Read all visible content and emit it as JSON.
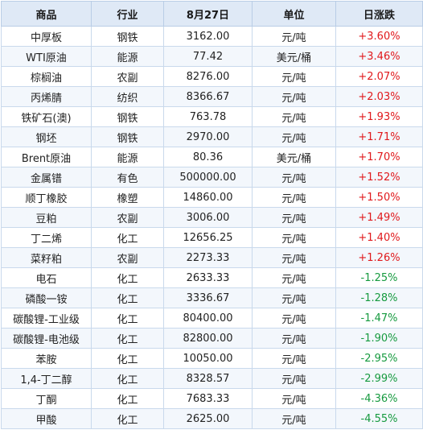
{
  "header": {
    "product": "商品",
    "industry": "行业",
    "date": "8月27日",
    "unit": "单位",
    "change": "日涨跌"
  },
  "rows": [
    {
      "name": "中厚板",
      "industry": "钢铁",
      "price": "3162.00",
      "unit": "元/吨",
      "change": "+3.60%"
    },
    {
      "name": "WTI原油",
      "industry": "能源",
      "price": "77.42",
      "unit": "美元/桶",
      "change": "+3.46%"
    },
    {
      "name": "棕榈油",
      "industry": "农副",
      "price": "8276.00",
      "unit": "元/吨",
      "change": "+2.07%"
    },
    {
      "name": "丙烯腈",
      "industry": "纺织",
      "price": "8366.67",
      "unit": "元/吨",
      "change": "+2.03%"
    },
    {
      "name": "铁矿石(澳)",
      "industry": "钢铁",
      "price": "763.78",
      "unit": "元/吨",
      "change": "+1.93%"
    },
    {
      "name": "钢坯",
      "industry": "钢铁",
      "price": "2970.00",
      "unit": "元/吨",
      "change": "+1.71%"
    },
    {
      "name": "Brent原油",
      "industry": "能源",
      "price": "80.36",
      "unit": "美元/桶",
      "change": "+1.70%"
    },
    {
      "name": "金属镨",
      "industry": "有色",
      "price": "500000.00",
      "unit": "元/吨",
      "change": "+1.52%"
    },
    {
      "name": "顺丁橡胶",
      "industry": "橡塑",
      "price": "14860.00",
      "unit": "元/吨",
      "change": "+1.50%"
    },
    {
      "name": "豆粕",
      "industry": "农副",
      "price": "3006.00",
      "unit": "元/吨",
      "change": "+1.49%"
    },
    {
      "name": "丁二烯",
      "industry": "化工",
      "price": "12656.25",
      "unit": "元/吨",
      "change": "+1.40%"
    },
    {
      "name": "菜籽粕",
      "industry": "农副",
      "price": "2273.33",
      "unit": "元/吨",
      "change": "+1.26%"
    },
    {
      "name": "电石",
      "industry": "化工",
      "price": "2633.33",
      "unit": "元/吨",
      "change": "-1.25%"
    },
    {
      "name": "磷酸一铵",
      "industry": "化工",
      "price": "3336.67",
      "unit": "元/吨",
      "change": "-1.28%"
    },
    {
      "name": "碳酸锂-工业级",
      "industry": "化工",
      "price": "80400.00",
      "unit": "元/吨",
      "change": "-1.47%"
    },
    {
      "name": "碳酸锂-电池级",
      "industry": "化工",
      "price": "82800.00",
      "unit": "元/吨",
      "change": "-1.90%"
    },
    {
      "name": "苯胺",
      "industry": "化工",
      "price": "10050.00",
      "unit": "元/吨",
      "change": "-2.95%"
    },
    {
      "name": "1,4-丁二醇",
      "industry": "化工",
      "price": "8328.57",
      "unit": "元/吨",
      "change": "-2.99%"
    },
    {
      "name": "丁酮",
      "industry": "化工",
      "price": "7683.33",
      "unit": "元/吨",
      "change": "-4.36%"
    },
    {
      "name": "甲酸",
      "industry": "化工",
      "price": "2625.00",
      "unit": "元/吨",
      "change": "-4.55%"
    }
  ],
  "colors": {
    "up": "#e0191c",
    "down": "#169a3f",
    "header_bg": "#dfe9f6"
  }
}
